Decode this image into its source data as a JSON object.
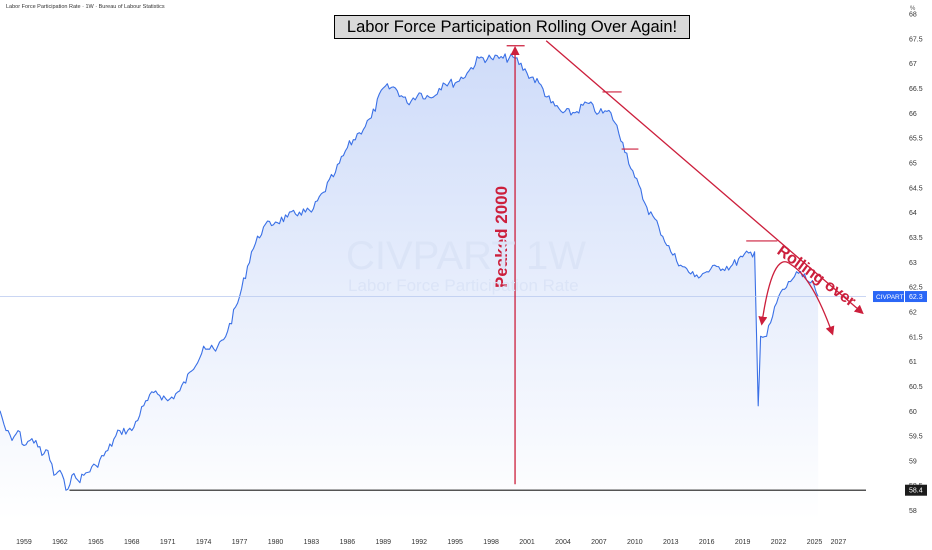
{
  "header": {
    "source_label": "Labor Force Participation Rate · 1W · Bureau of Labour Statistics",
    "headline": "Labor Force Participation Rolling Over Again!",
    "unit_label": "%"
  },
  "watermark": {
    "symbol": "CIVPART 1W",
    "name": "Labor Force Participation Rate"
  },
  "chart_data": {
    "type": "area",
    "x": [
      1957,
      1957.5,
      1958,
      1958.5,
      1959,
      1959.5,
      1960,
      1960.5,
      1961,
      1961.5,
      1962,
      1962.5,
      1963,
      1963.5,
      1964,
      1965,
      1966,
      1967,
      1968,
      1969,
      1970,
      1971,
      1972,
      1973,
      1974,
      1975,
      1976,
      1977,
      1978,
      1979,
      1980,
      1981,
      1982,
      1983,
      1984,
      1985,
      1986,
      1987,
      1988,
      1989,
      1990,
      1991,
      1992,
      1993,
      1994,
      1995,
      1996,
      1997,
      1998,
      1999,
      2000,
      2001,
      2002,
      2003,
      2004,
      2005,
      2006,
      2007,
      2008,
      2009,
      2010,
      2011,
      2012,
      2013,
      2014,
      2015,
      2016,
      2017,
      2018,
      2019,
      2020,
      2020.3,
      2020.5,
      2021,
      2021.5,
      2022,
      2023,
      2023.5,
      2024,
      2024.5,
      2025,
      2025.3
    ],
    "series": [
      {
        "values": [
          60.0,
          59.6,
          59.4,
          59.6,
          59.3,
          59.4,
          59.4,
          59.1,
          59.2,
          58.7,
          58.8,
          58.4,
          58.7,
          58.6,
          58.7,
          58.9,
          59.2,
          59.6,
          59.6,
          60.1,
          60.4,
          60.2,
          60.4,
          60.8,
          61.3,
          61.2,
          61.6,
          62.3,
          63.2,
          63.7,
          63.8,
          63.9,
          64.0,
          64.0,
          64.4,
          64.8,
          65.3,
          65.6,
          65.9,
          66.5,
          66.5,
          66.2,
          66.4,
          66.3,
          66.6,
          66.6,
          66.8,
          67.1,
          67.1,
          67.1,
          67.1,
          66.8,
          66.6,
          66.2,
          66.0,
          66.0,
          66.2,
          66.0,
          66.0,
          65.4,
          64.7,
          64.1,
          63.7,
          63.2,
          62.9,
          62.7,
          62.8,
          62.9,
          62.9,
          63.1,
          63.2,
          60.1,
          61.5,
          61.5,
          61.9,
          62.3,
          62.6,
          62.8,
          62.7,
          62.6,
          62.5,
          62.3
        ]
      }
    ],
    "last_value_label": "CIVPART",
    "last_value": 62.3,
    "support_value": 58.4,
    "x_tick_labels": [
      "1959",
      "1962",
      "1965",
      "1968",
      "1971",
      "1974",
      "1977",
      "1980",
      "1983",
      "1986",
      "1989",
      "1992",
      "1995",
      "1998",
      "2001",
      "2004",
      "2007",
      "2010",
      "2013",
      "2016",
      "2019",
      "2022",
      "2025",
      "2027"
    ],
    "y_tick_labels": [
      "68",
      "67.5",
      "67",
      "66.5",
      "66",
      "65.5",
      "65",
      "64.5",
      "64",
      "63.5",
      "63",
      "62.5",
      "62",
      "61.5",
      "61",
      "60.5",
      "60",
      "59.5",
      "59",
      "58.5",
      "58"
    ],
    "xlim": [
      1957,
      2029.3
    ],
    "ylim": [
      57.8,
      68.05
    ],
    "annotations": {
      "peak_label": "Peaked 2000",
      "peak_year": 2000,
      "rolling_label": "Rolling over",
      "peak_levels": [
        {
          "x": [
            1999.3,
            2000.8
          ],
          "y": 67.35
        },
        {
          "x": [
            2007.3,
            2008.9
          ],
          "y": 66.42
        },
        {
          "x": [
            2008.9,
            2010.3
          ],
          "y": 65.27
        },
        {
          "x": [
            2019.3,
            2021.9
          ],
          "y": 63.42
        }
      ]
    },
    "grid": false,
    "legend": "none"
  },
  "colors": {
    "line": "#3a70e6",
    "area_top": "#cfdcf9",
    "area_bottom": "#ffffff",
    "annotation": "#cc1f3c",
    "price_tag": "#2b67f6",
    "support_tag": "#1c1c1c",
    "support_line": "#1c1c1c"
  }
}
